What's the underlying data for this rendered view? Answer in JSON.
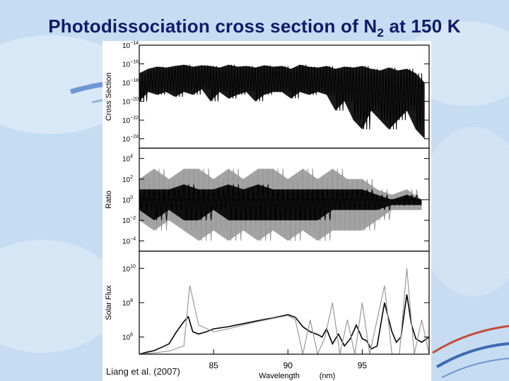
{
  "slide": {
    "title_main": "Photodissociation cross section of N",
    "title_sub": "2",
    "title_tail": " at 150 K",
    "citation": "Liang et al. (2007)",
    "background_color": "#c6dcf2",
    "title_color": "#0e1a6e"
  },
  "chart_data": [
    {
      "type": "line",
      "panel": "top",
      "ylabel": "Cross Section",
      "yscale": "log",
      "ylim": [
        1e-25,
        1e-14
      ],
      "yticks": [
        1e-14,
        1e-16,
        1e-18,
        1e-20,
        1e-22,
        1e-24
      ],
      "ytick_labels": [
        {
          "base": "10",
          "exp": "−14"
        },
        {
          "base": "10",
          "exp": "−16"
        },
        {
          "base": "10",
          "exp": "−18"
        },
        {
          "base": "10",
          "exp": "−20"
        },
        {
          "base": "10",
          "exp": "−22"
        },
        {
          "base": "10",
          "exp": "−24"
        }
      ],
      "xlim": [
        80,
        99.5
      ],
      "series": [
        {
          "color": "#000000",
          "x": [
            80,
            80.6,
            81.2,
            81.8,
            82.4,
            83,
            83.6,
            84.2,
            84.8,
            85.4,
            86,
            86.6,
            87.2,
            87.8,
            88.4,
            89,
            89.6,
            90.2,
            90.8,
            91.4,
            92,
            92.6,
            93.2,
            93.8,
            94.4,
            95,
            95.6,
            96.2,
            96.8,
            97.4,
            98,
            98.6,
            99.2
          ],
          "upper": [
            1e-17,
            3e-17,
            5e-17,
            4e-17,
            6e-17,
            8e-17,
            5e-17,
            7e-17,
            6e-17,
            4e-17,
            8e-17,
            5e-17,
            6e-17,
            4e-17,
            7e-17,
            5e-17,
            6e-17,
            3e-17,
            8e-17,
            5e-17,
            4e-17,
            6e-17,
            3e-17,
            5e-17,
            4e-17,
            6e-17,
            3e-17,
            2e-17,
            4e-17,
            2e-17,
            3e-17,
            1e-17,
            1e-18
          ],
          "lower": [
            1e-20,
            1e-19,
            5e-20,
            1e-19,
            3e-20,
            1e-19,
            5e-20,
            2e-19,
            1e-20,
            1e-19,
            2e-20,
            5e-20,
            1e-19,
            1e-20,
            5e-20,
            1e-19,
            1e-19,
            2e-20,
            1e-19,
            5e-20,
            1e-19,
            5e-20,
            1e-21,
            1e-20,
            1e-22,
            1e-23,
            1e-21,
            1e-22,
            1e-23,
            1e-22,
            1e-21,
            1e-23,
            1e-24
          ]
        }
      ]
    },
    {
      "type": "line",
      "panel": "middle",
      "ylabel": "Ratio",
      "yscale": "log",
      "ylim": [
        1e-05,
        100000.0
      ],
      "yticks": [
        10000.0,
        100.0,
        1.0,
        0.01,
        0.0001
      ],
      "ytick_labels": [
        {
          "base": "10",
          "exp": "4"
        },
        {
          "base": "10",
          "exp": "2"
        },
        {
          "base": "10",
          "exp": "0"
        },
        {
          "base": "10",
          "exp": "−2"
        },
        {
          "base": "10",
          "exp": "−4"
        }
      ],
      "xlim": [
        80,
        99.5
      ],
      "reference_line": 1,
      "series": [
        {
          "color": "#999999",
          "x": [
            80,
            81,
            82,
            83,
            84,
            85,
            86,
            87,
            88,
            89,
            90,
            91,
            92,
            93,
            94,
            95,
            96,
            97,
            98,
            99
          ],
          "upper": [
            100.0,
            1000.0,
            100.0,
            1000.0,
            1000.0,
            100.0,
            1000.0,
            100.0,
            1000.0,
            1000.0,
            100.0,
            1000.0,
            100.0,
            1000.0,
            100.0,
            100.0,
            10.0,
            3.0,
            10.0,
            1.0
          ],
          "lower": [
            0.01,
            0.001,
            0.01,
            0.001,
            0.0001,
            0.001,
            0.0001,
            0.001,
            0.0001,
            0.001,
            0.0001,
            0.001,
            0.0001,
            0.001,
            0.001,
            0.001,
            0.01,
            0.1,
            0.1,
            0.1
          ]
        },
        {
          "color": "#000000",
          "x": [
            80,
            81,
            82,
            83,
            84,
            85,
            86,
            87,
            88,
            89,
            90,
            91,
            92,
            93,
            94,
            95,
            96,
            97,
            98,
            99
          ],
          "upper": [
            10.0,
            10.0,
            10.0,
            30.0,
            10.0,
            10.0,
            30.0,
            10.0,
            30.0,
            10.0,
            10.0,
            10.0,
            10.0,
            10.0,
            10.0,
            10.0,
            3.0,
            1.0,
            3.0,
            1.0
          ],
          "lower": [
            0.1,
            0.01,
            0.1,
            0.01,
            0.01,
            0.1,
            0.01,
            0.01,
            0.01,
            0.01,
            0.01,
            0.01,
            0.01,
            0.1,
            0.1,
            0.1,
            0.1,
            0.3,
            0.3,
            0.3
          ]
        }
      ]
    },
    {
      "type": "line",
      "panel": "bottom",
      "ylabel": "Solar Flux",
      "yscale": "log",
      "ylim": [
        100000.0,
        100000000000.0
      ],
      "yticks": [
        10000000000.0,
        100000000.0,
        1000000.0
      ],
      "ytick_labels": [
        {
          "base": "10",
          "exp": "10"
        },
        {
          "base": "10",
          "exp": "8"
        },
        {
          "base": "10",
          "exp": "6"
        }
      ],
      "xlim": [
        80,
        99.5
      ],
      "xticks": [
        85,
        90,
        95
      ],
      "xtick_labels": [
        "85",
        "90",
        "95"
      ],
      "xlabel": "Wavelength",
      "xunit": "(nm)",
      "series": [
        {
          "color": "#000000",
          "x": [
            80,
            80.5,
            81,
            81.5,
            82,
            82.5,
            83,
            83.3,
            83.6,
            84,
            84.5,
            85,
            86,
            87,
            88,
            89,
            90,
            90.5,
            91,
            91.5,
            92,
            92.3,
            92.6,
            93,
            93.4,
            93.8,
            94.2,
            94.6,
            95,
            95.3,
            95.6,
            96,
            96.5,
            97,
            97.3,
            97.6,
            98,
            98.3,
            98.6,
            99,
            99.5
          ],
          "y": [
            100000.0,
            130000.0,
            160000.0,
            250000.0,
            400000.0,
            2000000.0,
            8000000.0,
            15000000.0,
            2000000.0,
            1500000.0,
            2000000.0,
            3000000.0,
            4000000.0,
            6000000.0,
            9000000.0,
            13000000.0,
            20000000.0,
            14000000.0,
            4000000.0,
            2000000.0,
            1400000.0,
            1000000.0,
            3000000.0,
            400000.0,
            1500000.0,
            300000.0,
            800000.0,
            5000000.0,
            800000.0,
            600000.0,
            200000.0,
            300000.0,
            100000000.0,
            2000000.0,
            500000.0,
            1000000.0,
            300000000.0,
            6000000.0,
            800000.0,
            500000.0,
            1000000.0
          ]
        },
        {
          "color": "#999999",
          "x": [
            80,
            81,
            82,
            83,
            83.4,
            84,
            85,
            86,
            87,
            88,
            89,
            90,
            90.5,
            91,
            91.5,
            92,
            92.5,
            93,
            93.5,
            94,
            94.5,
            95,
            95.5,
            96,
            96.5,
            97,
            97.5,
            98,
            98.5,
            99,
            99.5
          ],
          "y": [
            100000.0,
            120000.0,
            150000.0,
            300000.0,
            1000000000.0,
            5000000.0,
            2000000.0,
            3000000.0,
            5000000.0,
            8000000.0,
            12000000.0,
            18000000.0,
            10000000.0,
            100000.0,
            10000000.0,
            100000.0,
            1000000.0,
            100000000.0,
            100000.0,
            10000000.0,
            100000.0,
            100000000.0,
            100000.0,
            10000000.0,
            1000000000.0,
            100000.0,
            100000.0,
            10000000000.0,
            100000.0,
            10000000.0,
            100000.0
          ]
        }
      ]
    }
  ]
}
